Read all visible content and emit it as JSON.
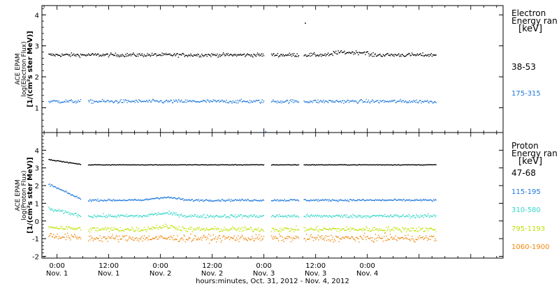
{
  "chart_data": [
    {
      "type": "scatter",
      "panel": "electron",
      "ylabel": [
        "ACE EPAM",
        "log(Electron Flux)",
        "[1/(cm²s ster MeV)]"
      ],
      "ylim": [
        0.2,
        4.3
      ],
      "yticks": [
        1,
        2,
        3,
        4
      ],
      "legend": {
        "title": [
          "Electron",
          "Energy ran",
          "[keV]"
        ],
        "placement": "right"
      },
      "series": [
        {
          "name": "38-53",
          "color": "#000000",
          "level": 2.72,
          "noise": 0.06,
          "gaps": [
            [
              48,
              49.5
            ],
            [
              56,
              57.2
            ]
          ]
        },
        {
          "name": "175-315",
          "color": "#1e78dc",
          "level": 1.22,
          "noise": 0.06,
          "gaps": [
            [
              5.5,
              7.0
            ],
            [
              48,
              49.5
            ],
            [
              56,
              57.2
            ]
          ]
        }
      ],
      "annotations": [
        {
          "x": 57.5,
          "y": 3.75,
          "color": "#000000"
        },
        {
          "x": 48.3,
          "y": 0.25,
          "color": "#1e78dc"
        }
      ]
    },
    {
      "type": "scatter",
      "panel": "proton",
      "ylabel": [
        "ACE EPAM",
        "log(Proton Flux)",
        "[1/(cm²s ster MeV)]"
      ],
      "ylim": [
        -2.1,
        5.0
      ],
      "yticks": [
        -2,
        -1,
        0,
        1,
        2,
        3,
        4
      ],
      "legend": {
        "title": [
          "Proton",
          "Energy ran",
          "[keV]"
        ],
        "placement": "right"
      },
      "series": [
        {
          "name": "47-68",
          "color": "#000000",
          "level": 3.2,
          "noise": 0.02,
          "start": 3.5,
          "decay": 6
        },
        {
          "name": "115-195",
          "color": "#1e78dc",
          "level": 1.2,
          "noise": 0.06,
          "start": 2.1,
          "decay": 6
        },
        {
          "name": "310-580",
          "color": "#33d6c8",
          "level": 0.3,
          "noise": 0.1,
          "start": 0.7,
          "decay": 6
        },
        {
          "name": "795-1193",
          "color": "#bfe000",
          "level": -0.45,
          "noise": 0.15,
          "start": -0.3,
          "decay": 6
        },
        {
          "name": "1060-1900",
          "color": "#f08a10",
          "level": -0.95,
          "noise": 0.2,
          "start": -0.8,
          "decay": 6
        }
      ]
    }
  ],
  "xaxis": {
    "title": "hours:minutes, Oct. 31, 2012 - Nov. 4, 2012",
    "range_hours": [
      -3.5,
      103.5
    ],
    "data_end_hours": 88,
    "ticks": [
      {
        "hour": 0,
        "time": "0:00",
        "date": "Nov. 1"
      },
      {
        "hour": 12,
        "time": "12:00",
        "date": "Nov. 1"
      },
      {
        "hour": 24,
        "time": "0:00",
        "date": "Nov. 2"
      },
      {
        "hour": 36,
        "time": "12:00",
        "date": "Nov. 2"
      },
      {
        "hour": 48,
        "time": "0:00",
        "date": "Nov. 3"
      },
      {
        "hour": 60,
        "time": "12:00",
        "date": "Nov. 3"
      },
      {
        "hour": 72,
        "time": "0:00",
        "date": "Nov. 4"
      }
    ]
  }
}
